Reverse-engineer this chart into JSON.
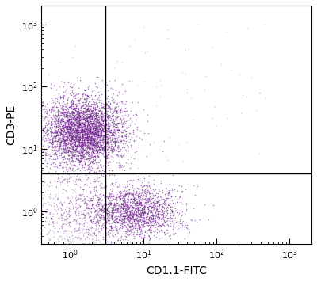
{
  "xlabel": "CD1.1-FITC",
  "ylabel": "CD3-PE",
  "xlim": [
    0.4,
    2000
  ],
  "ylim": [
    0.3,
    2000
  ],
  "dot_color": "#6B1A8A",
  "dot_alpha": 0.55,
  "dot_size": 1.2,
  "gate_x": 3.0,
  "gate_y": 4.0,
  "background_color": "#ffffff",
  "cluster1_x_log_mean": 0.18,
  "cluster1_x_log_std": 0.28,
  "cluster1_y_log_mean": 1.28,
  "cluster1_y_log_std": 0.28,
  "cluster1_n": 4000,
  "cluster2_x_log_mean": 0.88,
  "cluster2_x_log_std": 0.32,
  "cluster2_y_log_mean": 0.0,
  "cluster2_y_log_std": 0.22,
  "cluster2_n": 1800,
  "scatter_x_log_mean": 0.1,
  "scatter_x_log_std": 0.35,
  "scatter_y_log_mean": -0.05,
  "scatter_y_log_std": 0.35,
  "scatter_n": 700,
  "sparse_upper_n": 80,
  "seed": 42
}
